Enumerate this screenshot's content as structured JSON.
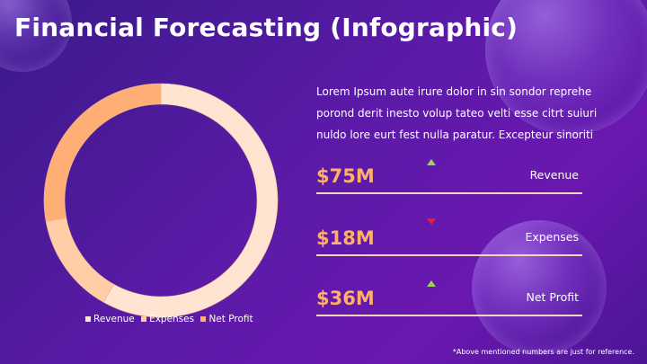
{
  "title": "Financial Forecasting (Infographic)",
  "description_lines": [
    "Lorem Ipsum aute irure dolor in sin sondor reprehe",
    "porond derit inesto volup tateo velti esse citrt suiuri",
    "nuldo lore eurt fest nulla paratur. Excepteur sinoriti"
  ],
  "metrics": [
    {
      "value": "$75M",
      "label": "Revenue",
      "trend": "up",
      "trend_color": "#9ed35a"
    },
    {
      "value": "$18M",
      "label": "Expenses",
      "trend": "down",
      "trend_color": "#e0222c"
    },
    {
      "value": "$36M",
      "label": "Net Profit",
      "trend": "up",
      "trend_color": "#9ed35a"
    }
  ],
  "footnote": "*Above mentioned numbers are just for reference.",
  "chart_data": {
    "type": "pie",
    "variant": "donut",
    "categories": [
      "Revenue",
      "Expenses",
      "Net Profit"
    ],
    "values": [
      75,
      18,
      36
    ],
    "colors": [
      "#ffe5d1",
      "#ffcda6",
      "#ffaf75"
    ],
    "legend": "bottom"
  },
  "colors": {
    "accent": "#ffb066",
    "divider": "#f7d7b8"
  }
}
